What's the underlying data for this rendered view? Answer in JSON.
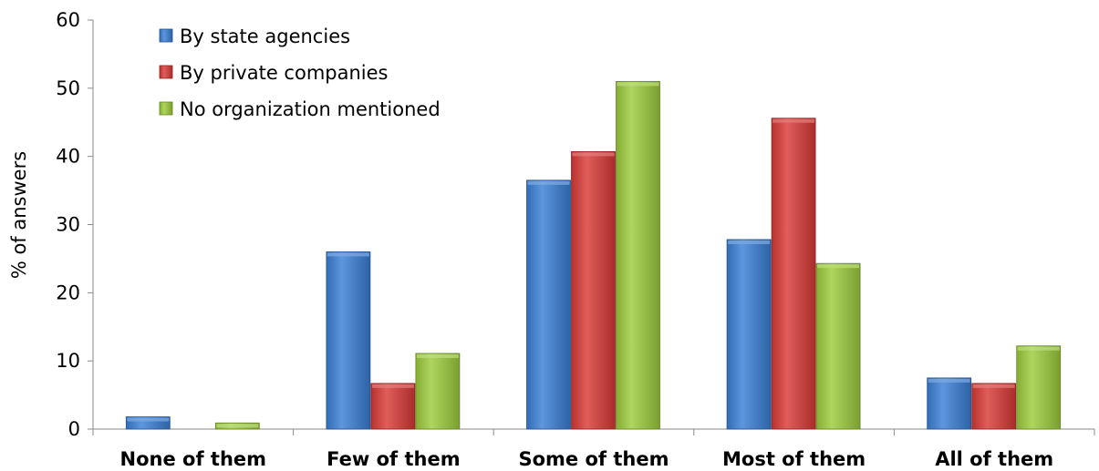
{
  "chart_data": {
    "type": "bar",
    "categories": [
      "None of them",
      "Few of them",
      "Some of them",
      "Most of them",
      "All of them"
    ],
    "series": [
      {
        "name": "By state agencies",
        "values": [
          1.8,
          26,
          36.5,
          27.8,
          7.5
        ],
        "color": "#3A7FD5"
      },
      {
        "name": "By private companies",
        "values": [
          0,
          6.7,
          40.7,
          45.6,
          6.7
        ],
        "color": "#D93A36"
      },
      {
        "name": "No organization mentioned",
        "values": [
          0.9,
          11.1,
          51.0,
          24.3,
          12.2
        ],
        "color": "#9DCC3C"
      }
    ],
    "title": "",
    "xlabel": "",
    "ylabel": "% of answers",
    "ylim": [
      0,
      60
    ],
    "yticks": [
      0,
      10,
      20,
      30,
      40,
      50,
      60
    ],
    "grid": false,
    "legend_position": "top-left"
  }
}
